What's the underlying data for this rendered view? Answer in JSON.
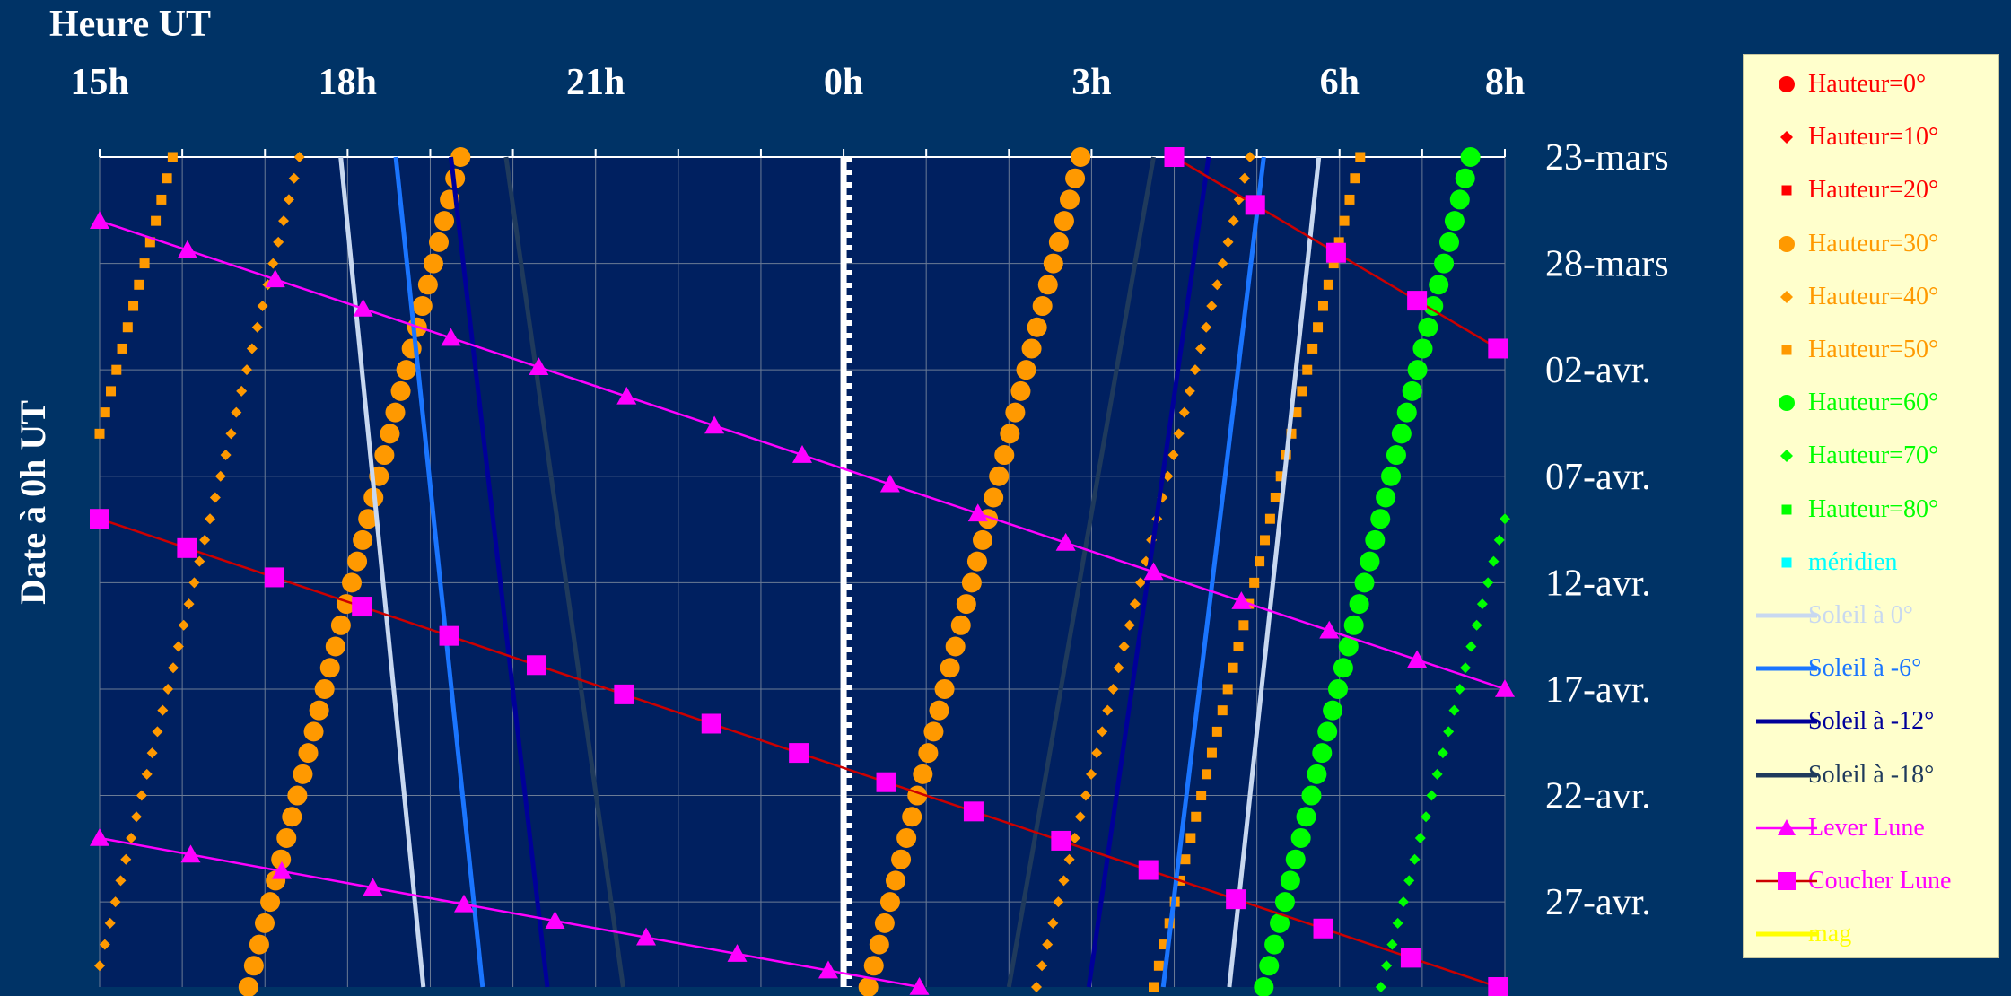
{
  "chart_data": {
    "type": "scatter",
    "title": "",
    "xlabel": "Heure UT",
    "ylabel": "Date à 0h UT",
    "x_ticks": [
      "15h",
      "18h",
      "21h",
      "0h",
      "3h",
      "6h",
      "8h"
    ],
    "x_range_hours_since_noon": [
      3,
      20
    ],
    "y_ticks": [
      "23-mars",
      "28-mars",
      "02-avr.",
      "07-avr.",
      "12-avr.",
      "17-avr.",
      "22-avr.",
      "27-avr."
    ],
    "y_range": [
      "23-mars",
      "01-mai"
    ],
    "grid": true,
    "legend_placement": "right",
    "meridian_hour": "0h",
    "series": [
      {
        "name": "Hauteur=0°",
        "color": "#ff0000",
        "marker": "circle",
        "points": []
      },
      {
        "name": "Hauteur=10°",
        "color": "#ff0000",
        "marker": "diamond",
        "points": []
      },
      {
        "name": "Hauteur=20°",
        "color": "#ff0000",
        "marker": "square",
        "points": []
      },
      {
        "name": "Hauteur=30°",
        "color": "#ff9900",
        "marker": "circle",
        "segments": [
          {
            "from": [
              "23-mars",
              "19h22"
            ],
            "to": [
              "01-mai",
              "16h48"
            ]
          },
          {
            "from": [
              "23-mars",
              "2h52"
            ],
            "to": [
              "01-mai",
              "0h18"
            ]
          }
        ]
      },
      {
        "name": "Hauteur=40°",
        "color": "#ff9900",
        "marker": "diamond",
        "segments": [
          {
            "from": [
              "23-mars",
              "17h25"
            ],
            "to": [
              "30-avr.",
              "15h00"
            ]
          },
          {
            "from": [
              "23-mars",
              "4h55"
            ],
            "to": [
              "01-mai",
              "2h20"
            ]
          }
        ]
      },
      {
        "name": "Hauteur=50°",
        "color": "#ff9900",
        "marker": "square",
        "segments": [
          {
            "from": [
              "23-mars",
              "15h53"
            ],
            "to": [
              "05-avr.",
              "15h00"
            ]
          },
          {
            "from": [
              "23-mars",
              "6h15"
            ],
            "to": [
              "01-mai",
              "3h45"
            ]
          }
        ]
      },
      {
        "name": "Hauteur=60°",
        "color": "#00ff00",
        "marker": "circle",
        "segments": [
          {
            "from": [
              "23-mars",
              "7h35"
            ],
            "to": [
              "01-mai",
              "5h05"
            ]
          }
        ]
      },
      {
        "name": "Hauteur=70°",
        "color": "#00ff00",
        "marker": "diamond",
        "segments": [
          {
            "from": [
              "09-avr.",
              "8h00"
            ],
            "to": [
              "01-mai",
              "6h30"
            ]
          }
        ]
      },
      {
        "name": "Hauteur=80°",
        "color": "#00ff00",
        "marker": "square",
        "points": []
      },
      {
        "name": "méridien",
        "color": "#00ffff",
        "marker": "square",
        "points": []
      },
      {
        "name": "Soleil à 0°",
        "color": "#c8d8f0",
        "marker": "line",
        "segments": [
          {
            "from": [
              "23-mars",
              "17h55"
            ],
            "to": [
              "01-mai",
              "18h55"
            ]
          },
          {
            "from": [
              "23-mars",
              "5h45"
            ],
            "to": [
              "01-mai",
              "4h40"
            ]
          }
        ]
      },
      {
        "name": "Soleil à -6°",
        "color": "#1a75ff",
        "marker": "line",
        "segments": [
          {
            "from": [
              "23-mars",
              "18h35"
            ],
            "to": [
              "01-mai",
              "19h38"
            ]
          },
          {
            "from": [
              "23-mars",
              "5h05"
            ],
            "to": [
              "01-mai",
              "3h52"
            ]
          }
        ]
      },
      {
        "name": "Soleil à -12°",
        "color": "#000099",
        "marker": "line",
        "segments": [
          {
            "from": [
              "23-mars",
              "19h15"
            ],
            "to": [
              "01-mai",
              "20h25"
            ]
          },
          {
            "from": [
              "23-mars",
              "4h25"
            ],
            "to": [
              "01-mai",
              "2h58"
            ]
          }
        ]
      },
      {
        "name": "Soleil à -18°",
        "color": "#1f3a5c",
        "marker": "line",
        "segments": [
          {
            "from": [
              "23-mars",
              "19h55"
            ],
            "to": [
              "01-mai",
              "21h20"
            ]
          },
          {
            "from": [
              "23-mars",
              "3h45"
            ],
            "to": [
              "01-mai",
              "2h00"
            ]
          }
        ]
      },
      {
        "name": "Lever Lune",
        "color": "#ff00ff",
        "marker": "triangle",
        "segments": [
          {
            "from": [
              "26-mars",
              "15h00"
            ],
            "to": [
              "17-avr.",
              "8h00"
            ]
          },
          {
            "from": [
              "24-avr.",
              "15h00"
            ],
            "to": [
              "01-mai",
              "0h55"
            ]
          }
        ]
      },
      {
        "name": "Coucher Lune",
        "color": "#ff00ff",
        "marker": "square",
        "line_color": "#cc0000",
        "segments": [
          {
            "from": [
              "23-mars",
              "4h00"
            ],
            "to": [
              "01-avr.",
              "7h55"
            ]
          },
          {
            "from": [
              "09-avr.",
              "15h00"
            ],
            "to": [
              "01-mai",
              "7h55"
            ]
          }
        ]
      },
      {
        "name": "mag",
        "color": "#ffff00",
        "marker": "line",
        "points": []
      }
    ]
  }
}
